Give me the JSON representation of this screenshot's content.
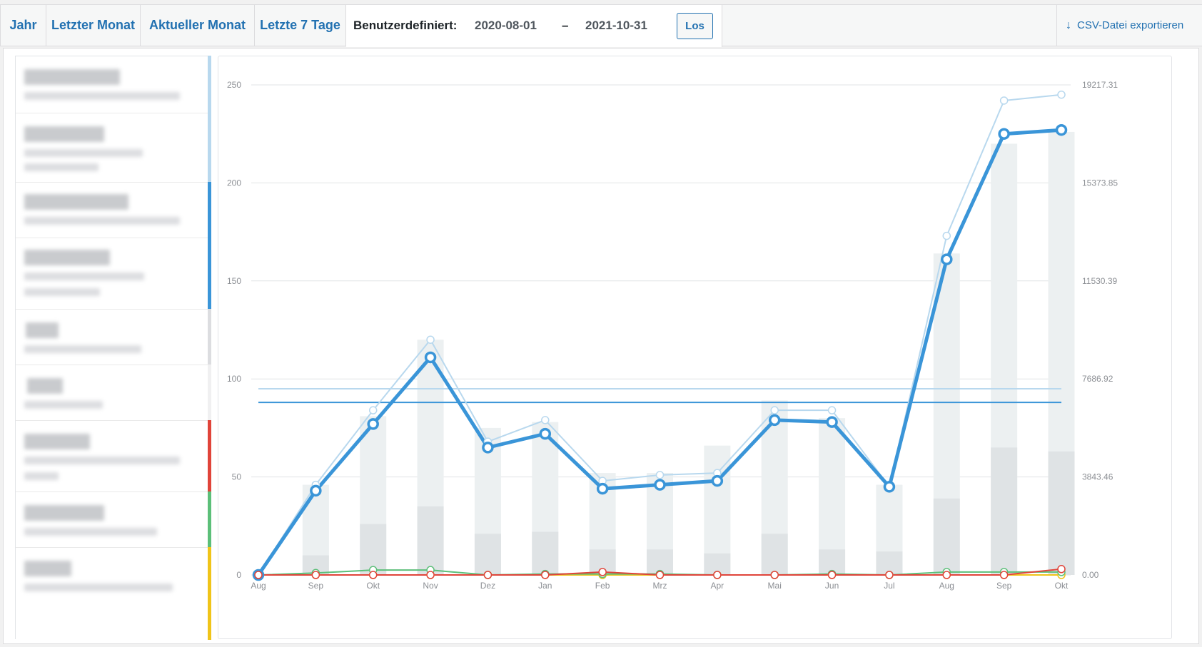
{
  "tabs": {
    "year": "Jahr",
    "last_month": "Letzter Monat",
    "current_month": "Aktueller Monat",
    "last_7_days": "Letzte 7 Tage"
  },
  "custom_range": {
    "label": "Benutzerdefiniert:",
    "from": "2020-08-01",
    "separator": "–",
    "to": "2021-10-31",
    "submit": "Los"
  },
  "export": {
    "label": "CSV-Datei exportieren",
    "icon": "download-arrow-icon"
  },
  "sidebar": {
    "items": [
      {
        "color": "#b8d8ee"
      },
      {
        "color": "#b8d8ee"
      },
      {
        "color": "#3a95d8"
      },
      {
        "color": "#3a95d8"
      },
      {
        "color": "#dcdde0"
      },
      {
        "color": "#f0f0f1"
      },
      {
        "color": "#e0443a"
      },
      {
        "color": "#5cbf79"
      },
      {
        "color": "#f0c419"
      }
    ]
  },
  "chart_data": {
    "type": "line",
    "categories": [
      "Aug",
      "Sep",
      "Okt",
      "Nov",
      "Dez",
      "Jan",
      "Feb",
      "Mrz",
      "Apr",
      "Mai",
      "Jun",
      "Jul",
      "Aug",
      "Sep",
      "Okt"
    ],
    "y_left": {
      "ticks": [
        "0",
        "50",
        "100",
        "150",
        "200",
        "250"
      ],
      "range": [
        0,
        250
      ]
    },
    "y_right": {
      "ticks": [
        "0.00",
        "3843.46",
        "7686.92",
        "11530.39",
        "15373.85",
        "19217.31"
      ],
      "range": [
        0,
        19217.31
      ]
    },
    "grid": true,
    "series": [
      {
        "role": "bars_light",
        "axis": "left",
        "color": "#ecf0f1",
        "values": [
          0,
          46,
          81,
          120,
          75,
          78,
          52,
          52,
          66,
          89,
          80,
          46,
          164,
          220,
          226
        ]
      },
      {
        "role": "bars_dark",
        "axis": "left",
        "color": "#dfe3e5",
        "values": [
          0,
          10,
          26,
          35,
          21,
          22,
          13,
          13,
          11,
          21,
          13,
          12,
          39,
          65,
          63
        ]
      },
      {
        "role": "line_light",
        "axis": "left",
        "color": "#b8d8ee",
        "values": [
          0,
          46,
          84,
          120,
          68,
          79,
          48,
          51,
          52,
          84,
          84,
          45,
          173,
          242,
          245
        ]
      },
      {
        "role": "line_main",
        "axis": "left",
        "color": "#3a95d8",
        "values": [
          0,
          43,
          77,
          111,
          65,
          72,
          44,
          46,
          48,
          79,
          78,
          45,
          161,
          225,
          227
        ]
      },
      {
        "role": "line_green",
        "axis": "left",
        "color": "#5cbf79",
        "values": [
          0,
          1,
          2.5,
          2.5,
          0,
          0.5,
          0.5,
          0.5,
          0,
          0,
          0.5,
          0,
          1.5,
          1.5,
          1.5
        ]
      },
      {
        "role": "line_yellow",
        "axis": "left",
        "color": "#f0c419",
        "values": [
          0,
          0,
          0,
          0,
          0,
          0,
          0,
          0,
          0,
          0,
          0,
          0,
          0,
          0,
          0
        ]
      },
      {
        "role": "line_red",
        "axis": "left",
        "color": "#e0443a",
        "values": [
          0,
          0,
          0,
          0,
          0,
          0,
          1.5,
          0,
          0,
          0,
          0,
          0,
          0,
          0,
          3
        ]
      }
    ],
    "averages": [
      {
        "color": "#b8d8ee",
        "value": 95
      },
      {
        "color": "#3a95d8",
        "value": 88
      }
    ]
  }
}
